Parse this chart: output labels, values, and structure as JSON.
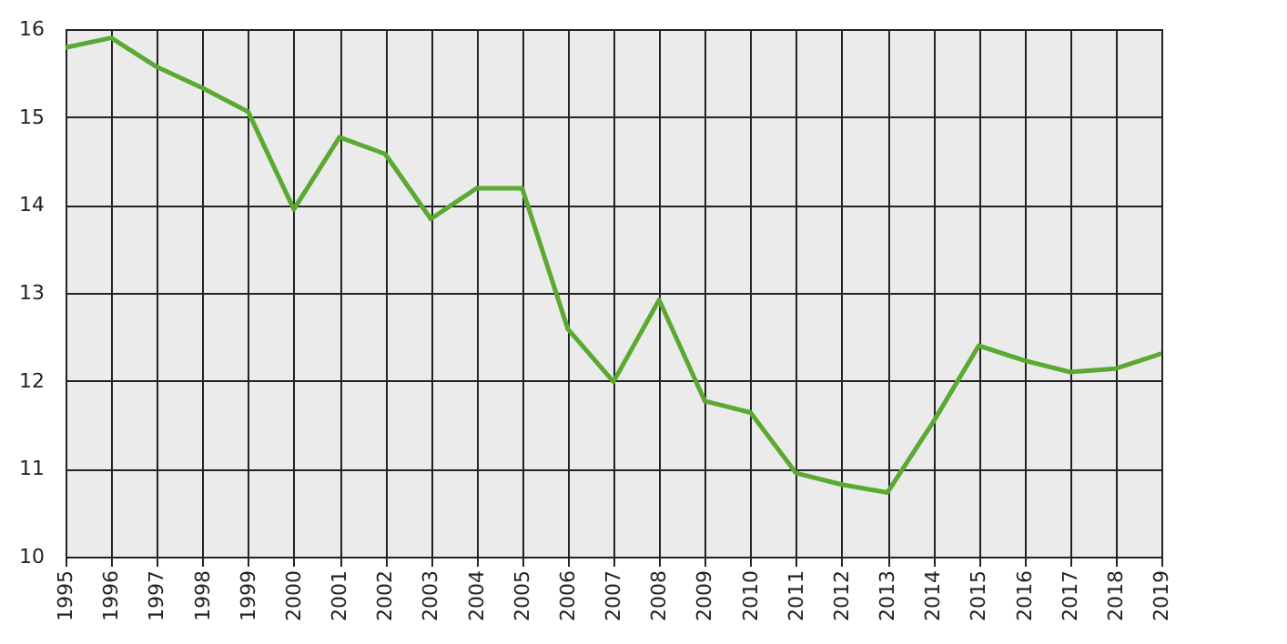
{
  "chart_data": {
    "type": "line",
    "categories": [
      "1995",
      "1996",
      "1997",
      "1998",
      "1999",
      "2000",
      "2001",
      "2002",
      "2003",
      "2004",
      "2005",
      "2006",
      "2007",
      "2008",
      "2009",
      "2010",
      "2011",
      "2012",
      "2013",
      "2014",
      "2015",
      "2016",
      "2017",
      "2018",
      "2019"
    ],
    "series": [
      {
        "color": "#5aaa32",
        "values": [
          15.79,
          15.9,
          15.57,
          15.33,
          15.06,
          13.95,
          14.77,
          14.58,
          13.84,
          14.19,
          14.19,
          12.59,
          11.99,
          12.92,
          11.77,
          11.64,
          10.95,
          10.82,
          10.73,
          11.53,
          12.4,
          12.23,
          12.1,
          12.14,
          12.31
        ]
      }
    ],
    "ylim": [
      10,
      16
    ],
    "yticks": [
      10,
      11,
      12,
      13,
      14,
      15,
      16
    ],
    "grid": true,
    "legend": false,
    "marker": "none",
    "line_style": "solid"
  }
}
